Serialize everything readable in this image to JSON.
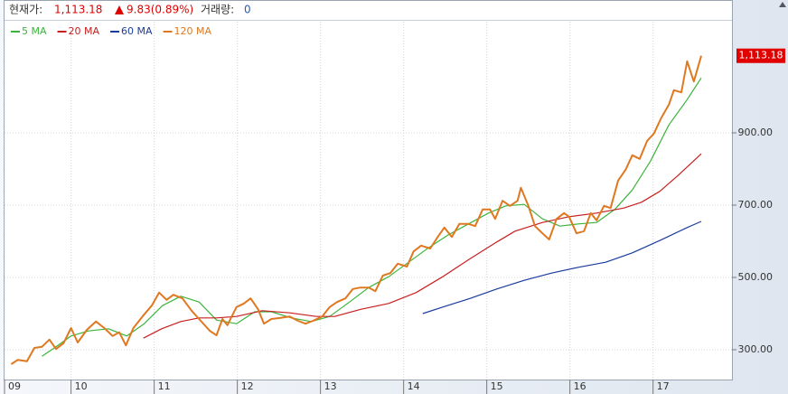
{
  "header": {
    "price_label": "현재가:",
    "price": "1,113.18",
    "change": "9.83(0.89%)",
    "volume_label": "거래량:",
    "volume": "0"
  },
  "chart_data": {
    "type": "line",
    "xlim": [
      9.2,
      17.96
    ],
    "xticks": [
      {
        "value": 9.2,
        "label": "09"
      },
      10,
      11,
      12,
      13,
      14,
      15,
      16,
      17
    ],
    "ylim": [
      217.5,
      1207.5
    ],
    "yticks": [
      {
        "value": 300,
        "label": "300.00"
      },
      {
        "value": 500,
        "label": "500.00"
      },
      {
        "value": 700,
        "label": "700.00"
      },
      {
        "value": 900,
        "label": "900.00"
      }
    ],
    "grid": true,
    "current_price": {
      "value": 1113.18,
      "label": "1,113.18"
    },
    "series": [
      {
        "name": "5 MA",
        "color": "#3cb43c",
        "x": [
          9.65,
          9.8,
          10.0,
          10.21,
          10.45,
          10.67,
          10.88,
          11.1,
          11.32,
          11.54,
          11.75,
          11.99,
          12.21,
          12.41,
          12.65,
          12.89,
          13.11,
          13.35,
          13.58,
          13.82,
          14.06,
          14.3,
          14.54,
          14.78,
          15.02,
          15.23,
          15.45,
          15.67,
          15.88,
          16.1,
          16.32,
          16.54,
          16.75,
          16.97,
          17.19,
          17.41,
          17.58
        ],
        "values": [
          282,
          305,
          338,
          352,
          358,
          338,
          372,
          422,
          448,
          432,
          382,
          372,
          405,
          405,
          388,
          378,
          392,
          432,
          472,
          502,
          542,
          582,
          618,
          648,
          678,
          698,
          702,
          662,
          642,
          648,
          652,
          688,
          742,
          822,
          922,
          992,
          1052
        ]
      },
      {
        "name": "20 MA",
        "color": "#c82020",
        "x": [
          10.87,
          11.09,
          11.32,
          11.54,
          11.75,
          11.99,
          12.3,
          12.63,
          12.95,
          13.17,
          13.49,
          13.82,
          14.15,
          14.47,
          14.8,
          15.12,
          15.34,
          15.67,
          15.99,
          16.32,
          16.65,
          16.86,
          17.08,
          17.3,
          17.58
        ],
        "values": [
          332,
          358,
          378,
          388,
          388,
          392,
          408,
          402,
          392,
          392,
          412,
          428,
          458,
          502,
          552,
          598,
          628,
          652,
          668,
          678,
          692,
          708,
          738,
          782,
          842
        ]
      },
      {
        "name": "60 MA",
        "color": "#1a3c9c",
        "x": [
          14.23,
          14.47,
          14.8,
          15.12,
          15.45,
          15.78,
          16.1,
          16.43,
          16.75,
          17.08,
          17.41,
          17.58
        ],
        "values": [
          400,
          418,
          442,
          468,
          492,
          512,
          528,
          542,
          568,
          602,
          638,
          655
        ]
      },
      {
        "name": "120 MA",
        "color": "#e07820",
        "x": [
          9.28,
          9.36,
          9.47,
          9.56,
          9.65,
          9.74,
          9.82,
          9.91,
          10.0,
          10.08,
          10.19,
          10.3,
          10.4,
          10.5,
          10.58,
          10.66,
          10.75,
          10.86,
          10.97,
          11.06,
          11.15,
          11.23,
          11.34,
          11.45,
          11.56,
          11.67,
          11.75,
          11.82,
          11.88,
          11.99,
          12.08,
          12.16,
          12.25,
          12.32,
          12.41,
          12.52,
          12.63,
          12.73,
          12.82,
          12.91,
          13.02,
          13.11,
          13.2,
          13.3,
          13.39,
          13.48,
          13.58,
          13.66,
          13.75,
          13.84,
          13.93,
          14.04,
          14.12,
          14.21,
          14.32,
          14.41,
          14.49,
          14.58,
          14.67,
          14.78,
          14.86,
          14.95,
          15.04,
          15.1,
          15.19,
          15.28,
          15.37,
          15.41,
          15.5,
          15.58,
          15.67,
          15.75,
          15.84,
          15.93,
          15.99,
          16.08,
          16.17,
          16.25,
          16.32,
          16.41,
          16.49,
          16.58,
          16.67,
          16.75,
          16.84,
          16.93,
          17.01,
          17.1,
          17.19,
          17.25,
          17.34,
          17.41,
          17.49,
          17.58
        ],
        "values": [
          260,
          272,
          268,
          305,
          308,
          328,
          302,
          318,
          360,
          320,
          355,
          378,
          360,
          338,
          348,
          312,
          360,
          392,
          422,
          458,
          438,
          452,
          442,
          408,
          380,
          352,
          340,
          385,
          368,
          418,
          428,
          442,
          412,
          372,
          385,
          388,
          392,
          380,
          372,
          380,
          392,
          418,
          432,
          442,
          468,
          472,
          472,
          462,
          505,
          512,
          538,
          530,
          572,
          588,
          580,
          612,
          638,
          612,
          648,
          648,
          642,
          688,
          688,
          662,
          712,
          698,
          712,
          748,
          698,
          642,
          622,
          605,
          662,
          678,
          668,
          622,
          628,
          678,
          658,
          698,
          692,
          768,
          798,
          838,
          828,
          878,
          898,
          942,
          978,
          1018,
          1012,
          1098,
          1042,
          1113.18
        ]
      }
    ]
  }
}
